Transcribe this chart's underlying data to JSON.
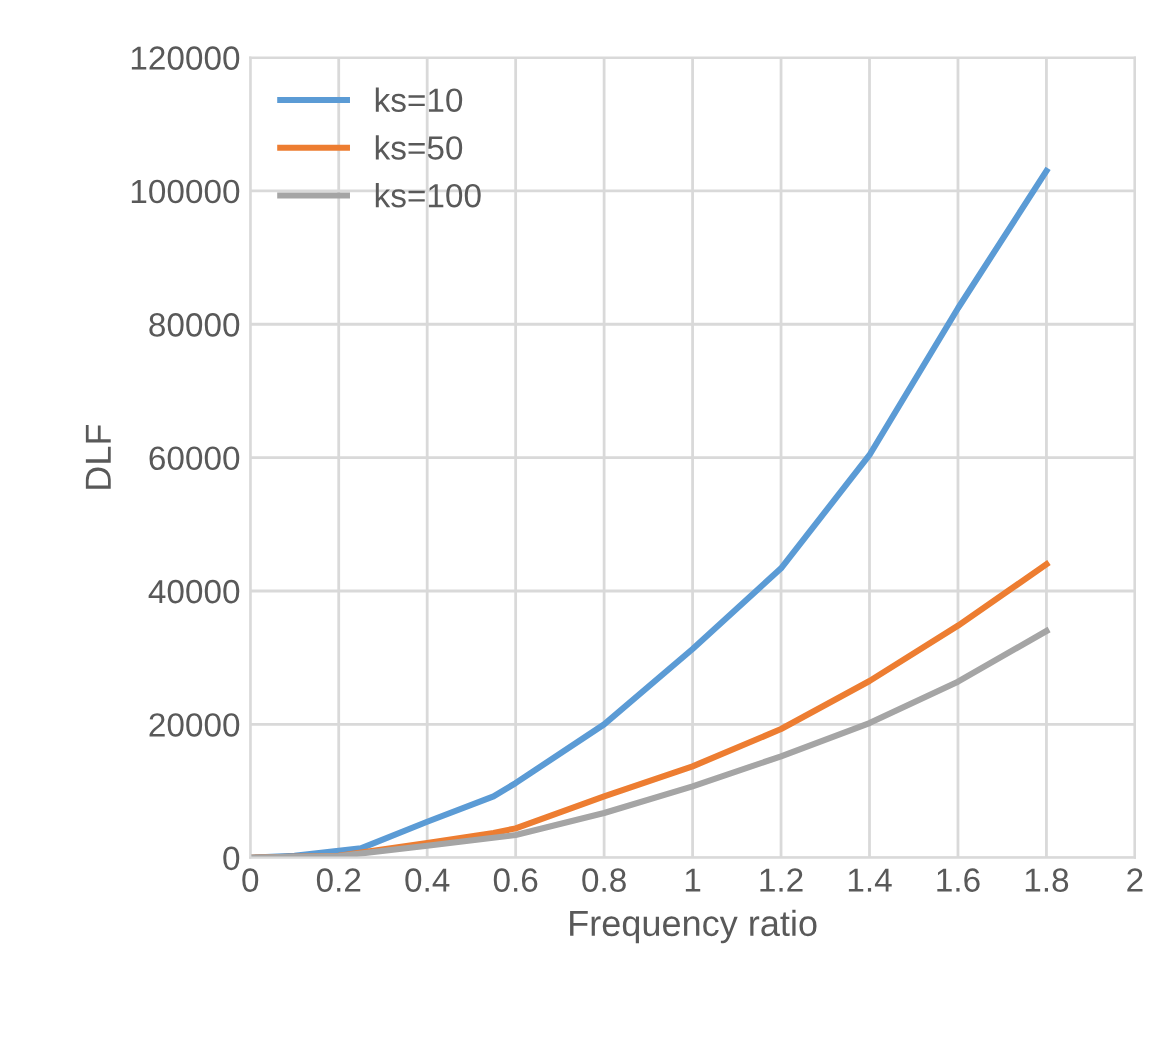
{
  "chart_data": {
    "type": "line",
    "xlabel": "Frequency ratio",
    "ylabel": "DLF",
    "xlim": [
      0,
      2
    ],
    "xticks": [
      0,
      0.2,
      0.4,
      0.6,
      0.8,
      1,
      1.2,
      1.4,
      1.6,
      1.8,
      2
    ],
    "ylim": [
      0,
      120000
    ],
    "yticks": [
      0,
      20000,
      40000,
      60000,
      80000,
      100000,
      120000
    ],
    "grid": true,
    "legend": "top left",
    "marker": "none",
    "line_style": "solid",
    "series": [
      {
        "name": "ks=10",
        "color": "#5b9bd5",
        "x": [
          0,
          0.1,
          0.25,
          0.4,
          0.55,
          0.6,
          0.8,
          1.0,
          1.2,
          1.4,
          1.6,
          1.8
        ],
        "values": [
          0,
          300,
          1400,
          5400,
          9200,
          11200,
          20000,
          31300,
          43400,
          60400,
          82400,
          103000
        ]
      },
      {
        "name": "ks=50",
        "color": "#ed7d31",
        "x": [
          0,
          0.2,
          0.4,
          0.55,
          0.6,
          0.8,
          1.0,
          1.2,
          1.4,
          1.6,
          1.8
        ],
        "values": [
          0,
          300,
          2200,
          3700,
          4400,
          9200,
          13700,
          19300,
          26500,
          34800,
          44000
        ]
      },
      {
        "name": "ks=100",
        "color": "#a5a5a5",
        "x": [
          0,
          0.2,
          0.4,
          0.6,
          0.8,
          1.0,
          1.2,
          1.4,
          1.6,
          1.8
        ],
        "values": [
          0,
          250,
          1800,
          3400,
          6700,
          10700,
          15200,
          20200,
          26400,
          34000
        ]
      }
    ]
  }
}
